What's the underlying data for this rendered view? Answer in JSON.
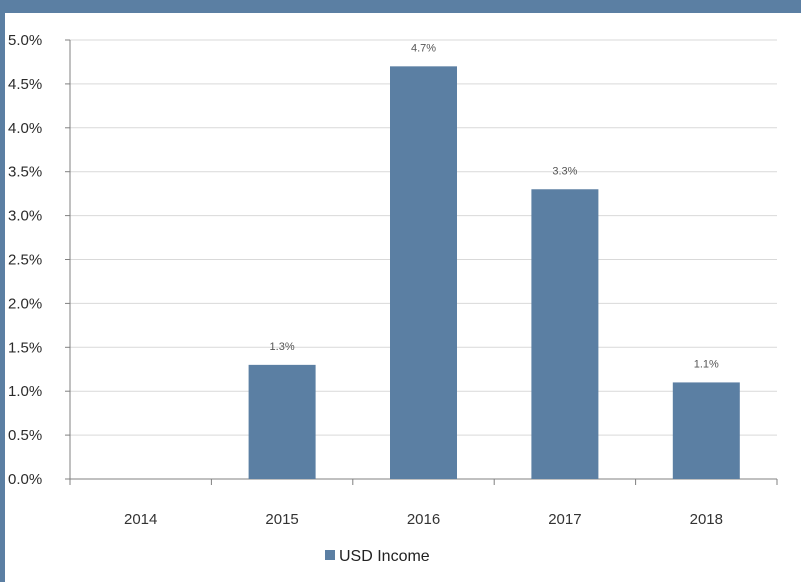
{
  "chart_data": {
    "type": "bar",
    "categories": [
      "2014",
      "2015",
      "2016",
      "2017",
      "2018"
    ],
    "series": [
      {
        "name": "USD Income",
        "values": [
          0,
          1.3,
          4.7,
          3.3,
          1.1
        ],
        "color": "#5b7fa3"
      }
    ],
    "data_labels": [
      "",
      "1.3%",
      "4.7%",
      "3.3%",
      "1.1%"
    ],
    "y_ticks": [
      "0.0%",
      "0.5%",
      "1.0%",
      "1.5%",
      "2.0%",
      "2.5%",
      "3.0%",
      "3.5%",
      "4.0%",
      "4.5%",
      "5.0%"
    ],
    "ylim": [
      0,
      5
    ],
    "grid": true,
    "legend_position": "bottom",
    "title": "",
    "xlabel": "",
    "ylabel": ""
  },
  "legend": {
    "label": "USD Income"
  }
}
